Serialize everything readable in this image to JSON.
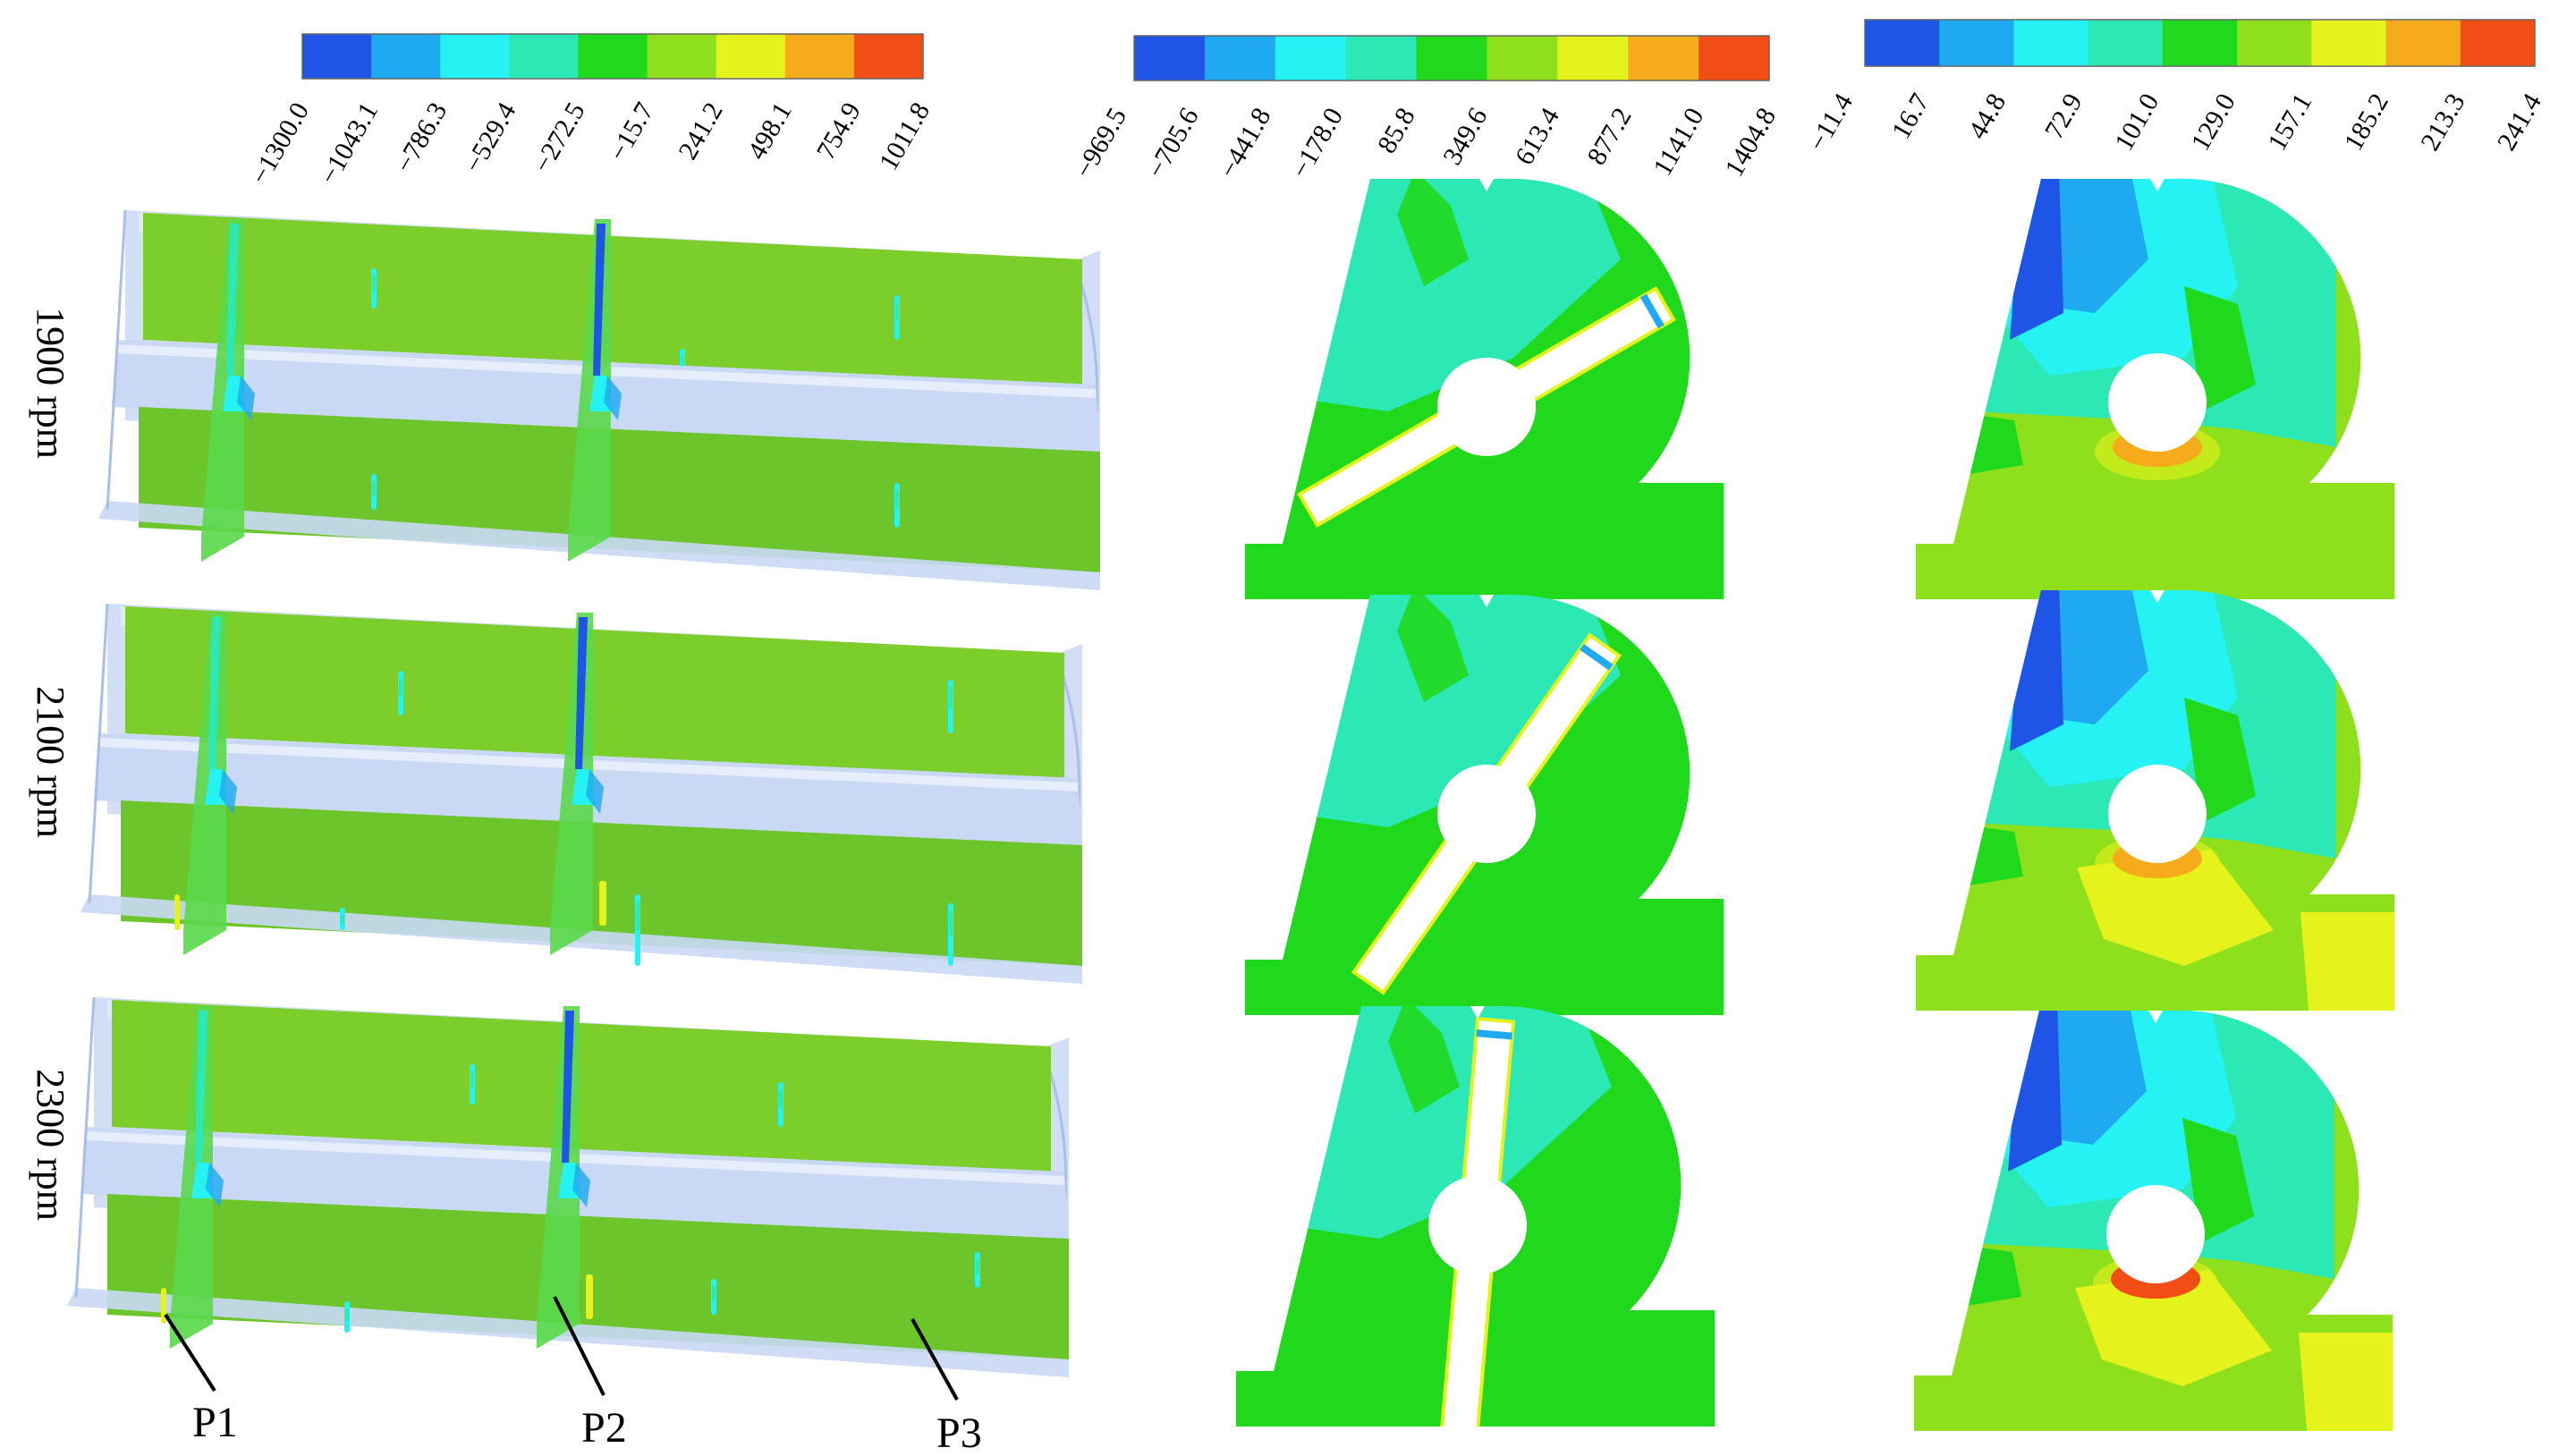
{
  "colorbars": [
    {
      "name": "colorbar-1",
      "colors": [
        "#1f55e6",
        "#1fa9f0",
        "#25f2f2",
        "#2be8b4",
        "#20d81c",
        "#8ee01c",
        "#e6f21c",
        "#f5ab1a",
        "#f04e14"
      ],
      "ticks": [
        "−1300.0",
        "−1043.1",
        "−786.3",
        "−529.4",
        "−272.5",
        "−15.7",
        "241.2",
        "498.1",
        "754.9",
        "1011.8"
      ]
    },
    {
      "name": "colorbar-2",
      "colors": [
        "#1f55e6",
        "#1fa9f0",
        "#25f2f2",
        "#2be8b4",
        "#20d81c",
        "#8ee01c",
        "#e6f21c",
        "#f5ab1a",
        "#f04e14"
      ],
      "ticks": [
        "−969.5",
        "−705.6",
        "−441.8",
        "−178.0",
        "85.8",
        "349.6",
        "613.4",
        "877.2",
        "1141.0",
        "1404.8"
      ]
    },
    {
      "name": "colorbar-3",
      "colors": [
        "#1f55e6",
        "#1fa9f0",
        "#25f2f2",
        "#2be8b4",
        "#20d81c",
        "#8ee01c",
        "#e6f21c",
        "#f5ab1a",
        "#f04e14"
      ],
      "ticks": [
        "−11.4",
        "16.7",
        "44.8",
        "72.9",
        "101.0",
        "129.0",
        "157.1",
        "185.2",
        "213.3",
        "241.4"
      ]
    }
  ],
  "rows": [
    {
      "label": "1900 rpm",
      "blade_angle": -30
    },
    {
      "label": "2100 rpm",
      "blade_angle": -55
    },
    {
      "label": "2300 rpm",
      "blade_angle": -85
    }
  ],
  "points": [
    "P1",
    "P2",
    "P3"
  ],
  "colors": {
    "blue": "#1f55e6",
    "light_blue": "#1fa9f0",
    "cyan": "#25f2f2",
    "teal": "#2be8b4",
    "green": "#20d81c",
    "yellow_green": "#8ee01c",
    "yellow": "#e6f21c",
    "orange": "#f5ab1a",
    "red": "#f04e14",
    "pipe_green": "#7ccf2a",
    "pipe_green_dark": "#6cc52a",
    "pipe_shell": "#c9d8f4"
  }
}
